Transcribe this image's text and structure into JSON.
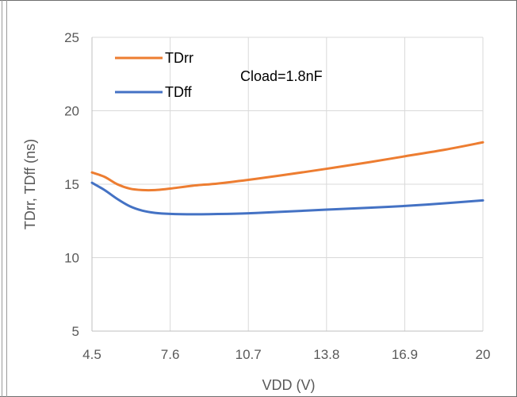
{
  "chart_data": {
    "type": "line",
    "title": "",
    "xlabel": "VDD (V)",
    "ylabel": "TDrr, TDff (ns)",
    "x_ticks": [
      "4.5",
      "7.6",
      "10.7",
      "13.8",
      "16.9",
      "20"
    ],
    "y_ticks": [
      "5",
      "10",
      "15",
      "20",
      "25"
    ],
    "xlim": [
      4.5,
      20
    ],
    "ylim": [
      5,
      25
    ],
    "grid": true,
    "legend_position": "top-left",
    "annotation": "Cload=1.8nF",
    "series": [
      {
        "name": "TDrr",
        "color": "#ED7D31",
        "x": [
          4.5,
          5.0,
          5.5,
          6.0,
          6.5,
          7.0,
          7.6,
          8.5,
          9.5,
          10.7,
          12.0,
          13.8,
          15.5,
          16.9,
          18.5,
          20.0
        ],
        "y": [
          15.8,
          15.5,
          15.0,
          14.7,
          14.6,
          14.6,
          14.7,
          14.9,
          15.05,
          15.3,
          15.6,
          16.05,
          16.5,
          16.9,
          17.35,
          17.85
        ]
      },
      {
        "name": "TDff",
        "color": "#4472C4",
        "x": [
          4.5,
          5.0,
          5.5,
          6.0,
          6.5,
          7.0,
          7.6,
          8.5,
          9.5,
          10.7,
          12.0,
          13.8,
          15.5,
          16.9,
          18.5,
          20.0
        ],
        "y": [
          15.1,
          14.6,
          14.0,
          13.5,
          13.2,
          13.05,
          12.98,
          12.95,
          12.97,
          13.02,
          13.12,
          13.27,
          13.4,
          13.52,
          13.7,
          13.9
        ]
      }
    ]
  }
}
